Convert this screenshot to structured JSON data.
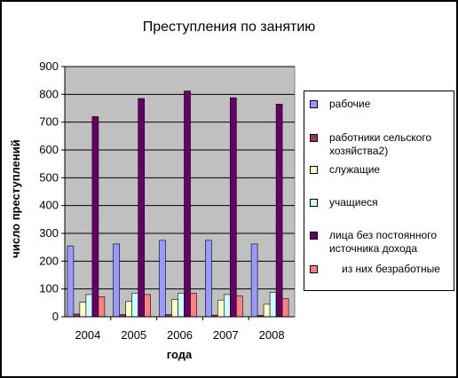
{
  "chart_data": {
    "type": "bar",
    "title": "Преступления по занятию",
    "xlabel": "года",
    "ylabel": "число преступлений",
    "categories": [
      "2004",
      "2005",
      "2006",
      "2007",
      "2008"
    ],
    "ylim": [
      0,
      900
    ],
    "yticks": [
      "0",
      "100",
      "200",
      "300",
      "400",
      "500",
      "600",
      "700",
      "800",
      "900"
    ],
    "grid": true,
    "legend_position": "right",
    "series": [
      {
        "name": "рабочие",
        "color": "#9999ff",
        "values": [
          255,
          262,
          275,
          275,
          262
        ]
      },
      {
        "name": "работники сельского хозяйства2)",
        "color": "#993366",
        "values": [
          10,
          8,
          8,
          6,
          5
        ]
      },
      {
        "name": "служащие",
        "color": "#ffffcc",
        "values": [
          52,
          55,
          62,
          60,
          45
        ]
      },
      {
        "name": "учащиеся",
        "color": "#ccffff",
        "values": [
          80,
          85,
          85,
          80,
          88
        ]
      },
      {
        "name": "лица без постоянного источника дохода",
        "color": "#660066",
        "values": [
          720,
          785,
          812,
          788,
          765
        ]
      },
      {
        "name": "из них безработные",
        "color": "#ff8080",
        "values": [
          72,
          80,
          85,
          75,
          65
        ]
      }
    ]
  }
}
